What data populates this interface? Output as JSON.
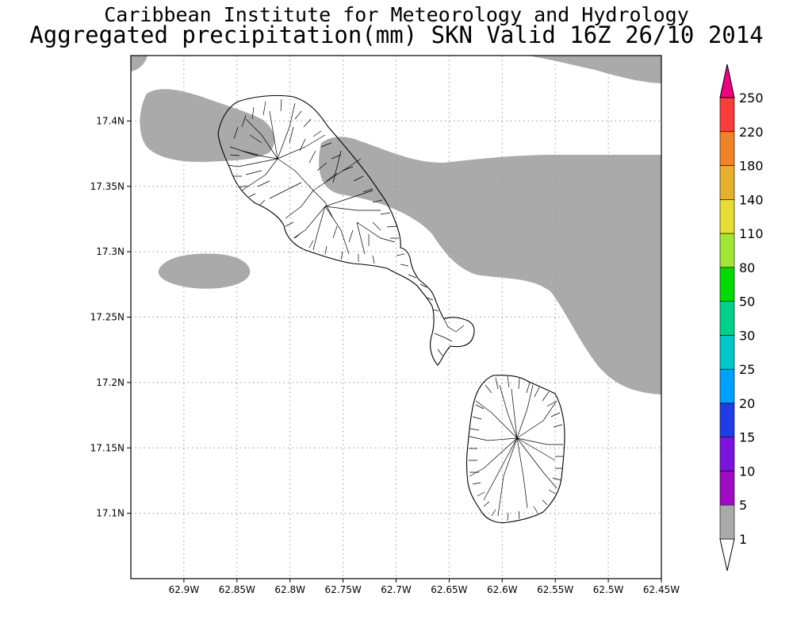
{
  "title": {
    "line1": "Caribbean Institute for Meteorology and Hydrology",
    "line2": "Aggregated precipitation(mm) SKN Valid 16Z 26/10 2014"
  },
  "map": {
    "lon_range": [
      -62.95,
      -62.45
    ],
    "lat_range": [
      17.05,
      17.45
    ],
    "x_ticks": [
      {
        "value": -62.9,
        "label": "62.9W"
      },
      {
        "value": -62.85,
        "label": "62.85W"
      },
      {
        "value": -62.8,
        "label": "62.8W"
      },
      {
        "value": -62.75,
        "label": "62.75W"
      },
      {
        "value": -62.7,
        "label": "62.7W"
      },
      {
        "value": -62.65,
        "label": "62.65W"
      },
      {
        "value": -62.6,
        "label": "62.6W"
      },
      {
        "value": -62.55,
        "label": "62.55W"
      },
      {
        "value": -62.5,
        "label": "62.5W"
      },
      {
        "value": -62.45,
        "label": "62.45W"
      }
    ],
    "y_ticks": [
      {
        "value": 17.4,
        "label": "17.4N"
      },
      {
        "value": 17.35,
        "label": "17.35N"
      },
      {
        "value": 17.3,
        "label": "17.3N"
      },
      {
        "value": 17.25,
        "label": "17.25N"
      },
      {
        "value": 17.2,
        "label": "17.2N"
      },
      {
        "value": 17.15,
        "label": "17.15N"
      },
      {
        "value": 17.1,
        "label": "17.1N"
      }
    ],
    "grid": "dotted",
    "islands": [
      "St. Kitts",
      "Nevis"
    ]
  },
  "colorbar": {
    "levels": [
      {
        "label": "1",
        "color": "#ffffff"
      },
      {
        "label": "5",
        "color": "#aaaaaa"
      },
      {
        "label": "10",
        "color": "#a00bc6"
      },
      {
        "label": "15",
        "color": "#7b14dc"
      },
      {
        "label": "20",
        "color": "#1f3ce6"
      },
      {
        "label": "25",
        "color": "#00a0ff"
      },
      {
        "label": "30",
        "color": "#00c8c8"
      },
      {
        "label": "50",
        "color": "#00d28c"
      },
      {
        "label": "80",
        "color": "#00dc00"
      },
      {
        "label": "110",
        "color": "#a0e632"
      },
      {
        "label": "140",
        "color": "#e6dc32"
      },
      {
        "label": "180",
        "color": "#e6af2d"
      },
      {
        "label": "220",
        "color": "#f08228"
      },
      {
        "label": "250",
        "color": "#fa3c3c"
      }
    ],
    "over_color": "#f00082"
  },
  "legend": {
    "shaded_band": "1-5 mm"
  }
}
